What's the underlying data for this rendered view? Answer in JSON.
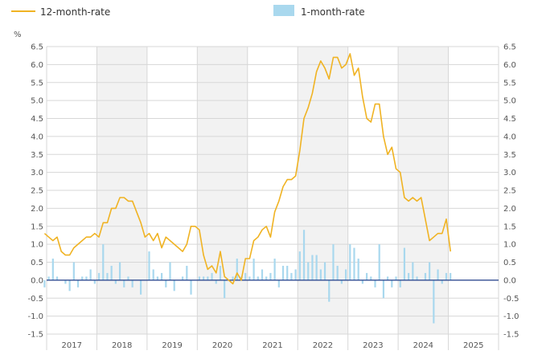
{
  "colors": {
    "line": "#F0B323",
    "bar": "#A9D8EE",
    "grid": "#D7D7D7",
    "axis_text": "#555555",
    "zero_line": "#1F3C88",
    "year_band": "#F2F2F2"
  },
  "chart_data": {
    "type": "bar+line",
    "title": "",
    "unit_label": "%",
    "ylim": [
      -1.5,
      6.5
    ],
    "y_ticks": [
      -1.5,
      -1.0,
      -0.5,
      0.0,
      0.5,
      1.0,
      1.5,
      2.0,
      2.5,
      3.0,
      3.5,
      4.0,
      4.5,
      5.0,
      5.5,
      6.0,
      6.5
    ],
    "y_tick_labels": [
      "-1.5",
      "-1.0",
      "-0.5",
      "0.0",
      "0.5",
      "1.0",
      "1.5",
      "2.0",
      "2.5",
      "3.0",
      "3.5",
      "4.0",
      "4.5",
      "5.0",
      "5.5",
      "6.0",
      "6.5"
    ],
    "x_year_labels": [
      "2017",
      "2018",
      "2019",
      "2020",
      "2021",
      "2022",
      "2023",
      "2024",
      "2025"
    ],
    "grid": true,
    "legend_position": "top",
    "x_start": "2016-12",
    "series": [
      {
        "name": "12-month-rate",
        "kind": "line",
        "values": [
          1.3,
          1.2,
          1.1,
          1.2,
          0.8,
          0.7,
          0.7,
          0.9,
          1.0,
          1.1,
          1.2,
          1.2,
          1.3,
          1.2,
          1.6,
          1.6,
          2.0,
          2.0,
          2.3,
          2.3,
          2.2,
          2.2,
          1.9,
          1.6,
          1.2,
          1.3,
          1.1,
          1.3,
          0.9,
          1.2,
          1.1,
          1.0,
          0.9,
          0.8,
          1.0,
          1.5,
          1.5,
          1.4,
          0.7,
          0.3,
          0.4,
          0.2,
          0.8,
          0.1,
          0.0,
          -0.1,
          0.2,
          0.0,
          0.6,
          0.6,
          1.1,
          1.2,
          1.4,
          1.5,
          1.2,
          1.9,
          2.2,
          2.6,
          2.8,
          2.8,
          2.9,
          3.6,
          4.5,
          4.8,
          5.2,
          5.8,
          6.1,
          5.9,
          5.6,
          6.2,
          6.2,
          5.9,
          6.0,
          6.3,
          5.7,
          5.9,
          5.1,
          4.5,
          4.4,
          4.9,
          4.9,
          4.0,
          3.5,
          3.7,
          3.1,
          3.0,
          2.3,
          2.2,
          2.3,
          2.2,
          2.3,
          1.7,
          1.1,
          1.2,
          1.3,
          1.3,
          1.7,
          0.8
        ]
      },
      {
        "name": "1-month-rate",
        "kind": "bar",
        "values": [
          -0.2,
          0.1,
          0.6,
          0.1,
          0.0,
          -0.1,
          -0.3,
          0.5,
          -0.2,
          0.1,
          0.1,
          0.3,
          -0.1,
          0.2,
          1.0,
          0.2,
          0.4,
          -0.1,
          0.5,
          -0.2,
          0.1,
          -0.2,
          0.0,
          -0.4,
          0.0,
          0.8,
          0.3,
          0.1,
          0.2,
          -0.2,
          0.5,
          -0.3,
          0.0,
          0.1,
          0.4,
          -0.4,
          0.0,
          0.1,
          0.1,
          0.1,
          0.2,
          -0.1,
          0.4,
          -0.5,
          0.0,
          0.1,
          0.6,
          0.1,
          0.2,
          0.1,
          0.6,
          0.1,
          0.3,
          0.1,
          0.2,
          0.6,
          -0.2,
          0.4,
          0.4,
          0.2,
          0.3,
          0.8,
          1.4,
          0.5,
          0.7,
          0.7,
          0.3,
          0.5,
          -0.6,
          1.0,
          0.4,
          -0.1,
          0.3,
          1.0,
          0.9,
          0.6,
          -0.1,
          0.2,
          0.1,
          -0.2,
          1.0,
          -0.5,
          0.1,
          -0.2,
          0.1,
          -0.2,
          0.9,
          0.2,
          0.5,
          0.1,
          0.0,
          0.2,
          0.5,
          -1.2,
          0.3,
          -0.1,
          0.2,
          0.2
        ]
      }
    ]
  }
}
